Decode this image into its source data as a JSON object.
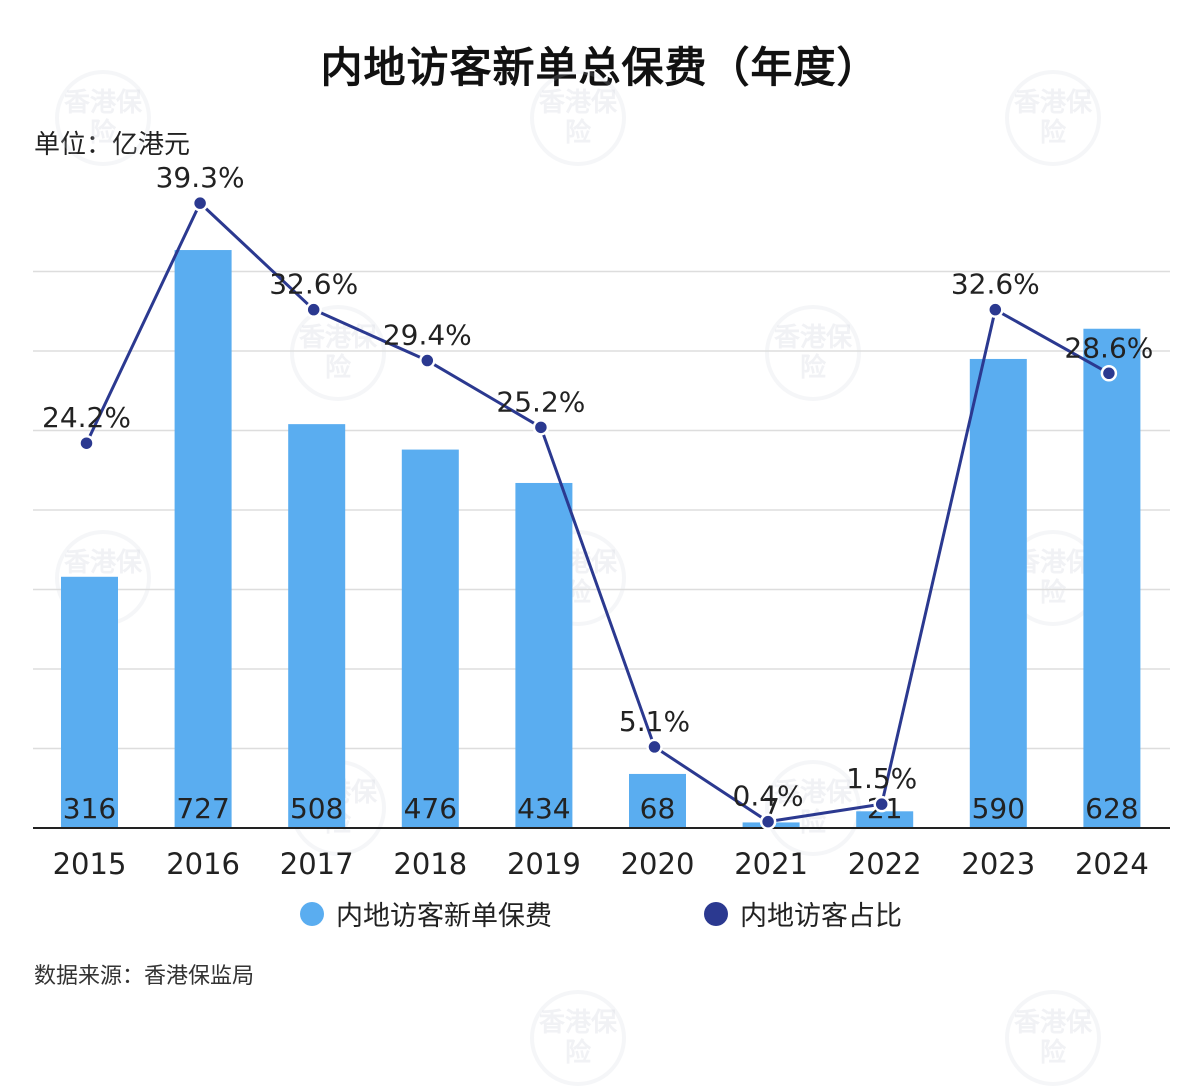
{
  "title": "内地访客新单总保费（年度）",
  "unit": "单位：亿港元",
  "source": "数据来源：香港保监局",
  "watermark": "香港保险",
  "colors": {
    "bar": "#5aadf0",
    "line": "#2b3990",
    "grid": "#dddddd",
    "axis": "#222222"
  },
  "legend": {
    "bar_label": "内地访客新单保费",
    "line_label": "内地访客占比"
  },
  "chart_data": {
    "type": "bar",
    "categories": [
      "2015",
      "2016",
      "2017",
      "2018",
      "2019",
      "2020",
      "2021",
      "2022",
      "2023",
      "2024"
    ],
    "series": [
      {
        "name": "内地访客新单保费",
        "type": "bar",
        "values": [
          316,
          727,
          508,
          476,
          434,
          68,
          7,
          21,
          590,
          628
        ],
        "labels": [
          "316",
          "727",
          "508",
          "476",
          "434",
          "68",
          "7",
          "21",
          "590",
          "628"
        ]
      },
      {
        "name": "内地访客占比",
        "type": "line",
        "values": [
          24.2,
          39.3,
          32.6,
          29.4,
          25.2,
          5.1,
          0.4,
          1.5,
          32.6,
          28.6
        ],
        "labels": [
          "24.2%",
          "39.3%",
          "32.6%",
          "29.4%",
          "25.2%",
          "5.1%",
          "0.4%",
          "1.5%",
          "32.6%",
          "28.6%"
        ]
      }
    ],
    "ylabel": "亿港元",
    "ylim": [
      0,
      800
    ],
    "y2lim": [
      0,
      40
    ],
    "grid": true,
    "legend_position": "bottom"
  }
}
